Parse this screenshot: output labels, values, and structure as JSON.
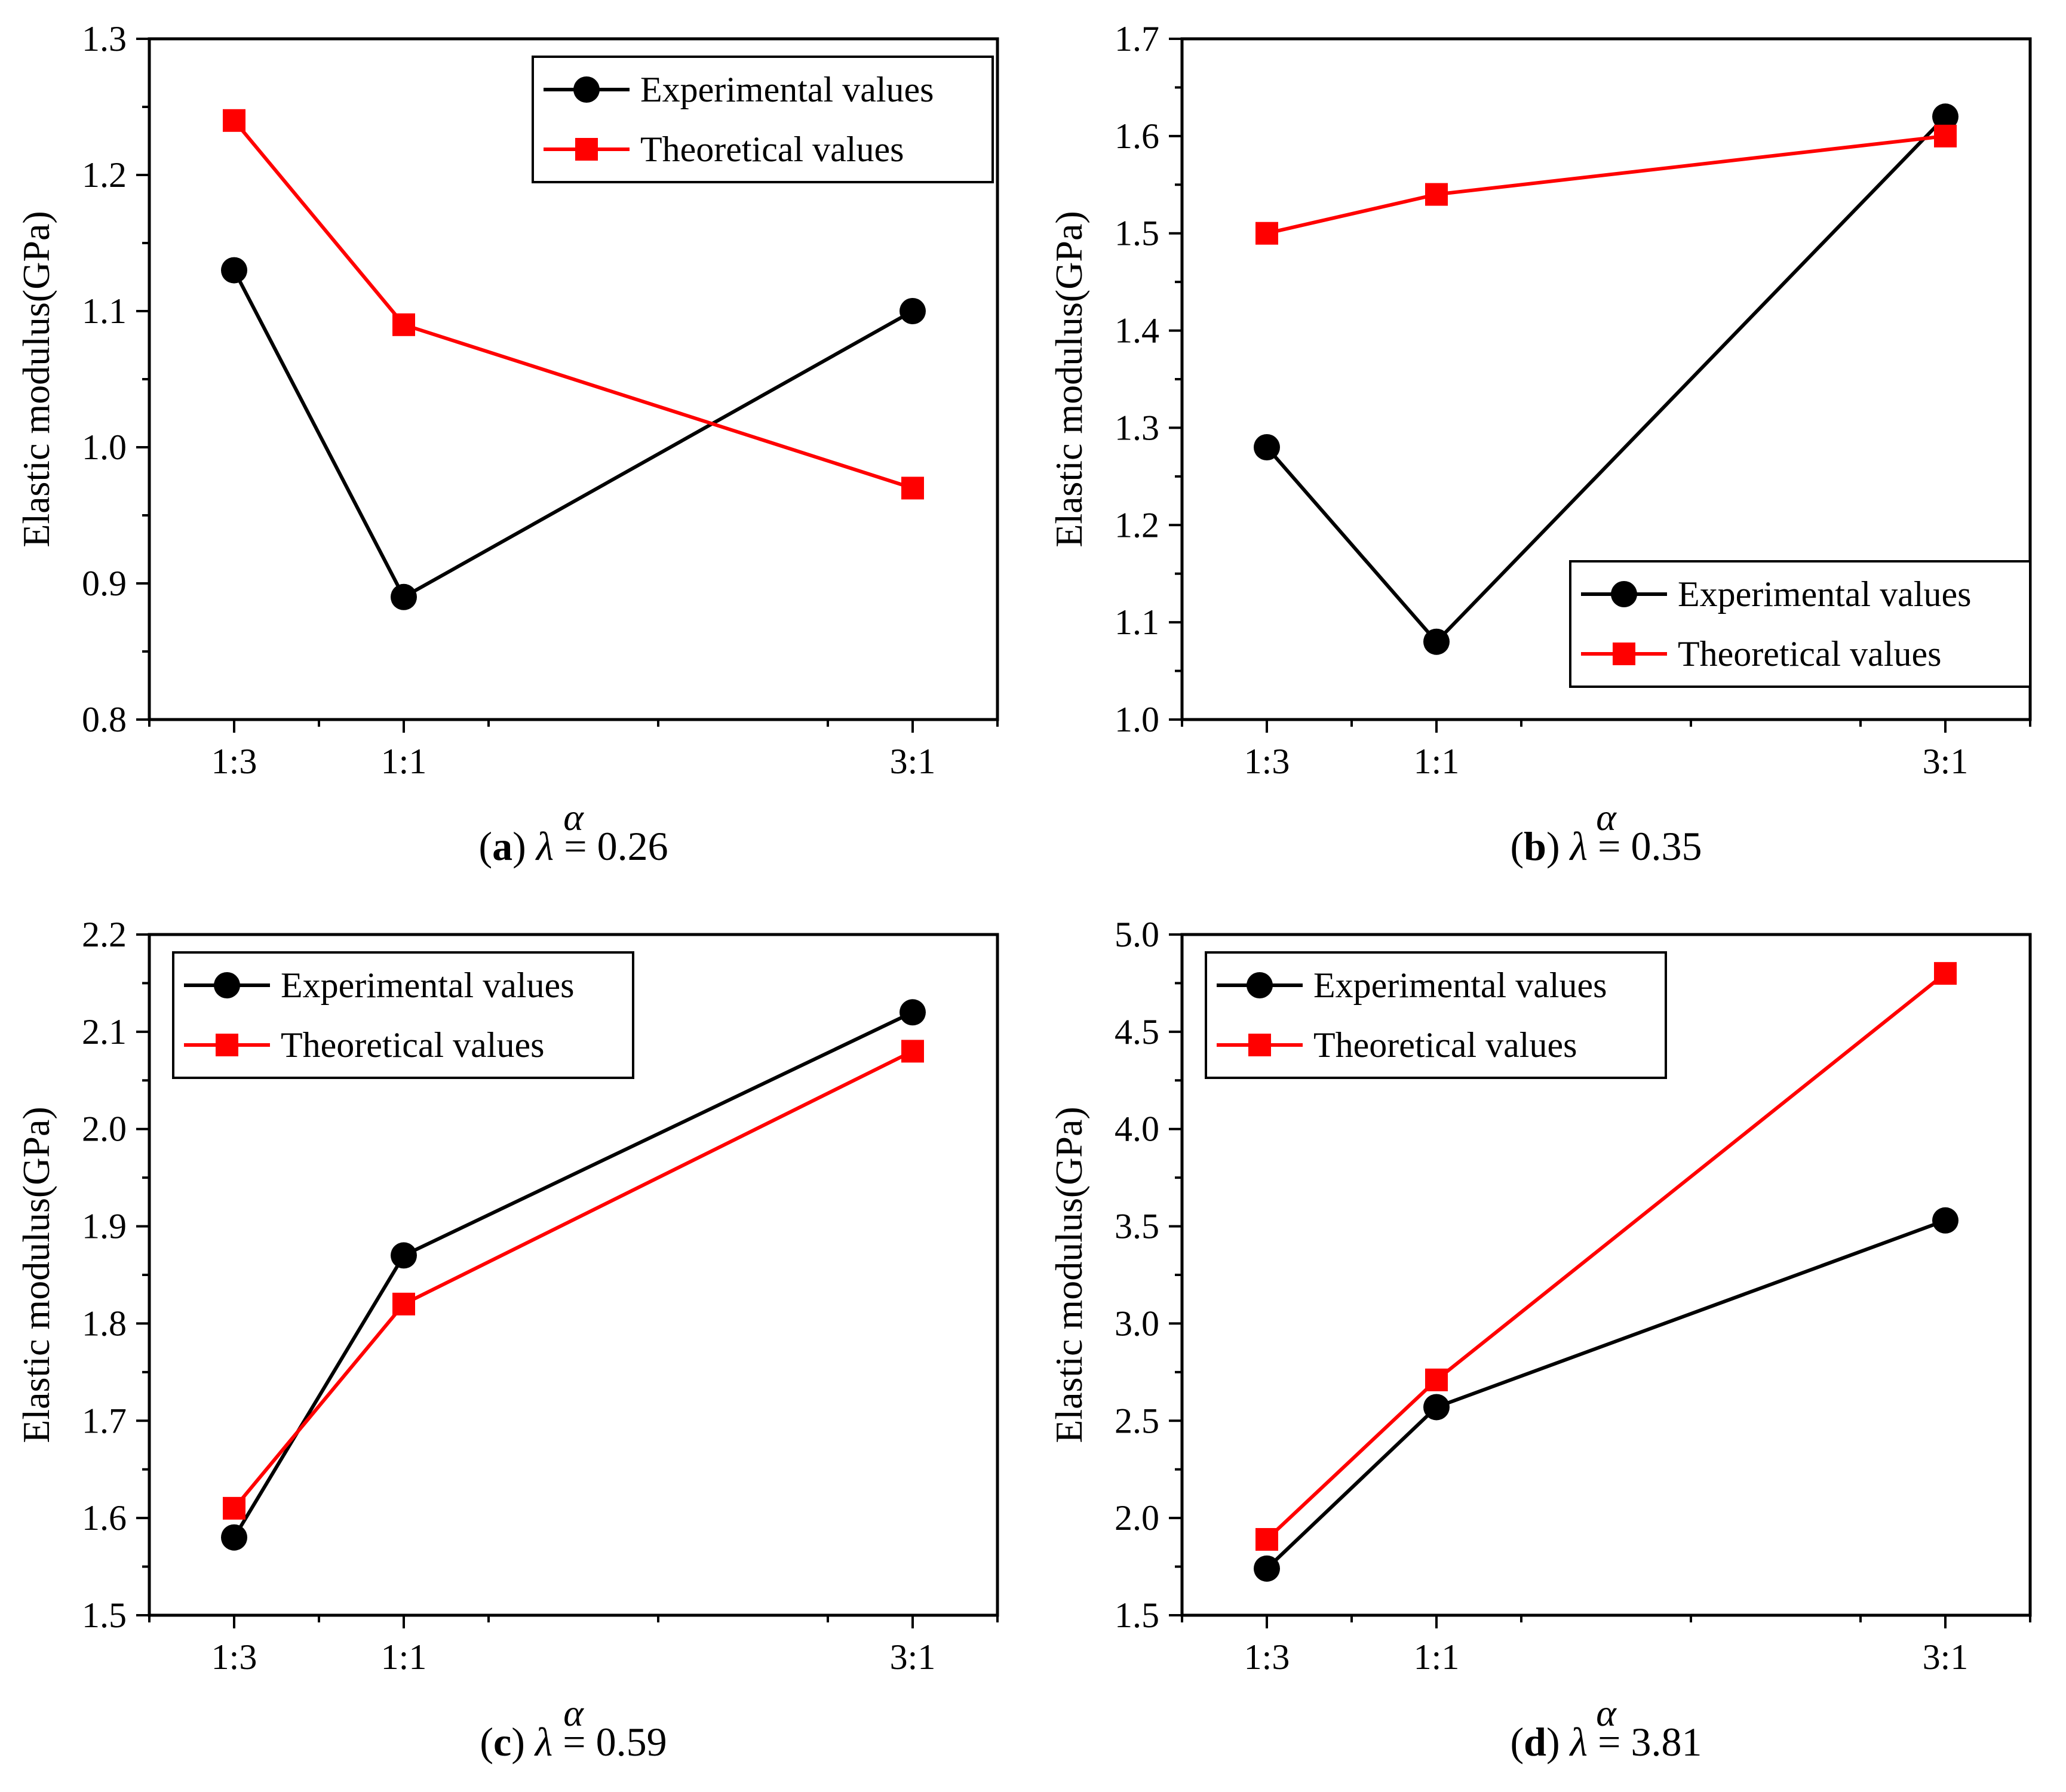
{
  "colors": {
    "experimental": "#000000",
    "theoretical": "#ff0000"
  },
  "chart_data": [
    {
      "type": "line",
      "caption": {
        "letter": "a",
        "lambda_value": "0.26"
      },
      "categories": [
        "1:3",
        "1:1",
        "3:1"
      ],
      "x_positions": [
        1,
        2,
        5
      ],
      "xlim": [
        0.5,
        5.5
      ],
      "xlabel": "α",
      "ylabel": "Elastic modulus(GPa)",
      "ylim": [
        0.8,
        1.3
      ],
      "yticks": [
        "0.8",
        "0.9",
        "1.0",
        "1.1",
        "1.2",
        "1.3"
      ],
      "legend": "top-right",
      "grid": false,
      "series": [
        {
          "name": "Experimental values",
          "marker": "circle",
          "values": [
            1.13,
            0.89,
            1.1
          ]
        },
        {
          "name": "Theoretical values",
          "marker": "square",
          "values": [
            1.24,
            1.09,
            0.97
          ]
        }
      ]
    },
    {
      "type": "line",
      "caption": {
        "letter": "b",
        "lambda_value": "0.35"
      },
      "categories": [
        "1:3",
        "1:1",
        "3:1"
      ],
      "x_positions": [
        1,
        2,
        5
      ],
      "xlim": [
        0.5,
        5.5
      ],
      "xlabel": "α",
      "ylabel": "Elastic modulus(GPa)",
      "ylim": [
        1.0,
        1.7
      ],
      "yticks": [
        "1.0",
        "1.1",
        "1.2",
        "1.3",
        "1.4",
        "1.5",
        "1.6",
        "1.7"
      ],
      "legend": "bottom-right",
      "grid": false,
      "series": [
        {
          "name": "Experimental values",
          "marker": "circle",
          "values": [
            1.28,
            1.08,
            1.62
          ]
        },
        {
          "name": "Theoretical values",
          "marker": "square",
          "values": [
            1.5,
            1.54,
            1.6
          ]
        }
      ]
    },
    {
      "type": "line",
      "caption": {
        "letter": "c",
        "lambda_value": "0.59"
      },
      "categories": [
        "1:3",
        "1:1",
        "3:1"
      ],
      "x_positions": [
        1,
        2,
        5
      ],
      "xlim": [
        0.5,
        5.5
      ],
      "xlabel": "α",
      "ylabel": "Elastic modulus(GPa)",
      "ylim": [
        1.5,
        2.2
      ],
      "yticks": [
        "1.5",
        "1.6",
        "1.7",
        "1.8",
        "1.9",
        "2.0",
        "2.1",
        "2.2"
      ],
      "legend": "top-left",
      "grid": false,
      "series": [
        {
          "name": "Experimental values",
          "marker": "circle",
          "values": [
            1.58,
            1.87,
            2.12
          ]
        },
        {
          "name": "Theoretical values",
          "marker": "square",
          "values": [
            1.61,
            1.82,
            2.08
          ]
        }
      ]
    },
    {
      "type": "line",
      "caption": {
        "letter": "d",
        "lambda_value": "3.81"
      },
      "categories": [
        "1:3",
        "1:1",
        "3:1"
      ],
      "x_positions": [
        1,
        2,
        5
      ],
      "xlim": [
        0.5,
        5.5
      ],
      "xlabel": "α",
      "ylabel": "Elastic modulus(GPa)",
      "ylim": [
        1.5,
        5.0
      ],
      "yticks": [
        "1.5",
        "2.0",
        "2.5",
        "3.0",
        "3.5",
        "4.0",
        "4.5",
        "5.0"
      ],
      "legend": "top-left",
      "grid": false,
      "series": [
        {
          "name": "Experimental values",
          "marker": "circle",
          "values": [
            1.74,
            2.57,
            3.53
          ]
        },
        {
          "name": "Theoretical values",
          "marker": "square",
          "values": [
            1.89,
            2.71,
            4.8
          ]
        }
      ]
    }
  ]
}
